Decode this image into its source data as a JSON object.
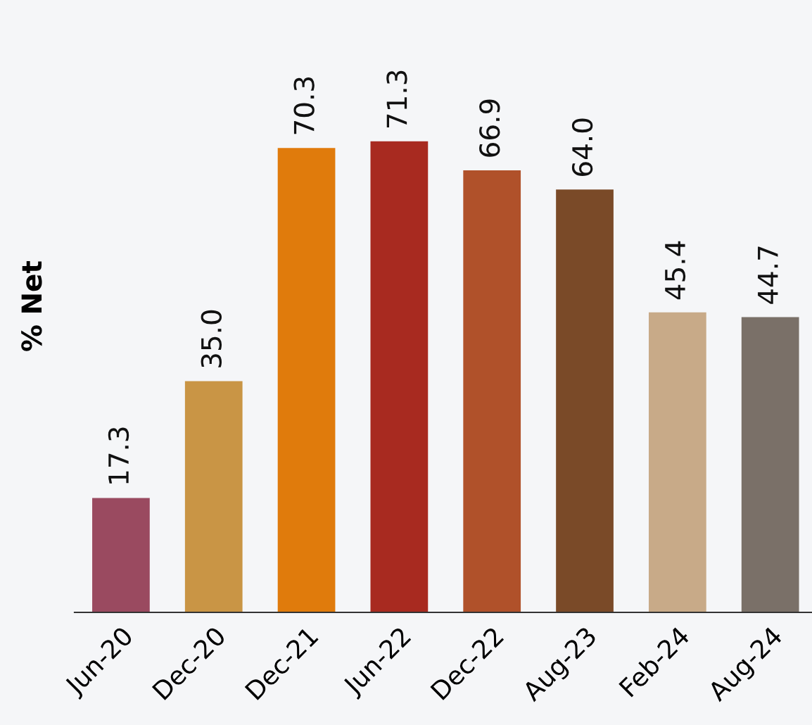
{
  "chart_data": {
    "type": "bar",
    "ylabel": "% Net",
    "categories": [
      "Jun-20",
      "Dec-20",
      "Dec-21",
      "Jun-22",
      "Dec-22",
      "Aug-23",
      "Feb-24",
      "Aug-24"
    ],
    "values": [
      17.3,
      35.0,
      70.3,
      71.3,
      66.9,
      64.0,
      45.4,
      44.7
    ],
    "value_labels": [
      "17.3",
      "35.0",
      "70.3",
      "71.3",
      "66.9",
      "64.0",
      "45.4",
      "44.7"
    ],
    "colors": [
      "#9a4a60",
      "#c99545",
      "#e07b0c",
      "#a82a20",
      "#b0512a",
      "#7a4a28",
      "#c8aa88",
      "#7a7068"
    ],
    "grid": false,
    "legend": false
  }
}
